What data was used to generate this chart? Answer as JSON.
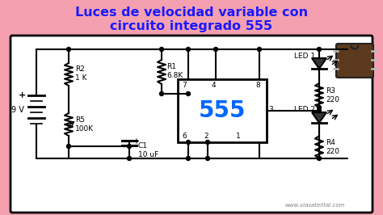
{
  "title_line1": "Luces de velocidad variable con",
  "title_line2": "circuito integrado 555",
  "title_color": "#1a1aff",
  "bg_color": "#f5a0b0",
  "circuit_bg": "#ffffff",
  "watermark": "www.viasatelital.com",
  "battery_label": "9 V",
  "R1_label": "R1\n6.8K",
  "R2_label": "R2\n1 K",
  "R5_label": "R5\n100K",
  "C1_label": "C1\n10 uF",
  "R3_label": "R3\n220",
  "R4_label": "R4\n220",
  "LED1_label": "LED 1",
  "LED2_label": "LED 2",
  "IC_label": "555",
  "pin4": "4",
  "pin7": "7",
  "pin8": "8",
  "pin3": "3",
  "pin6": "6",
  "pin2": "2",
  "pin1": "1",
  "ic_color": "#0066ff",
  "chip_color": "#5c3a1e"
}
